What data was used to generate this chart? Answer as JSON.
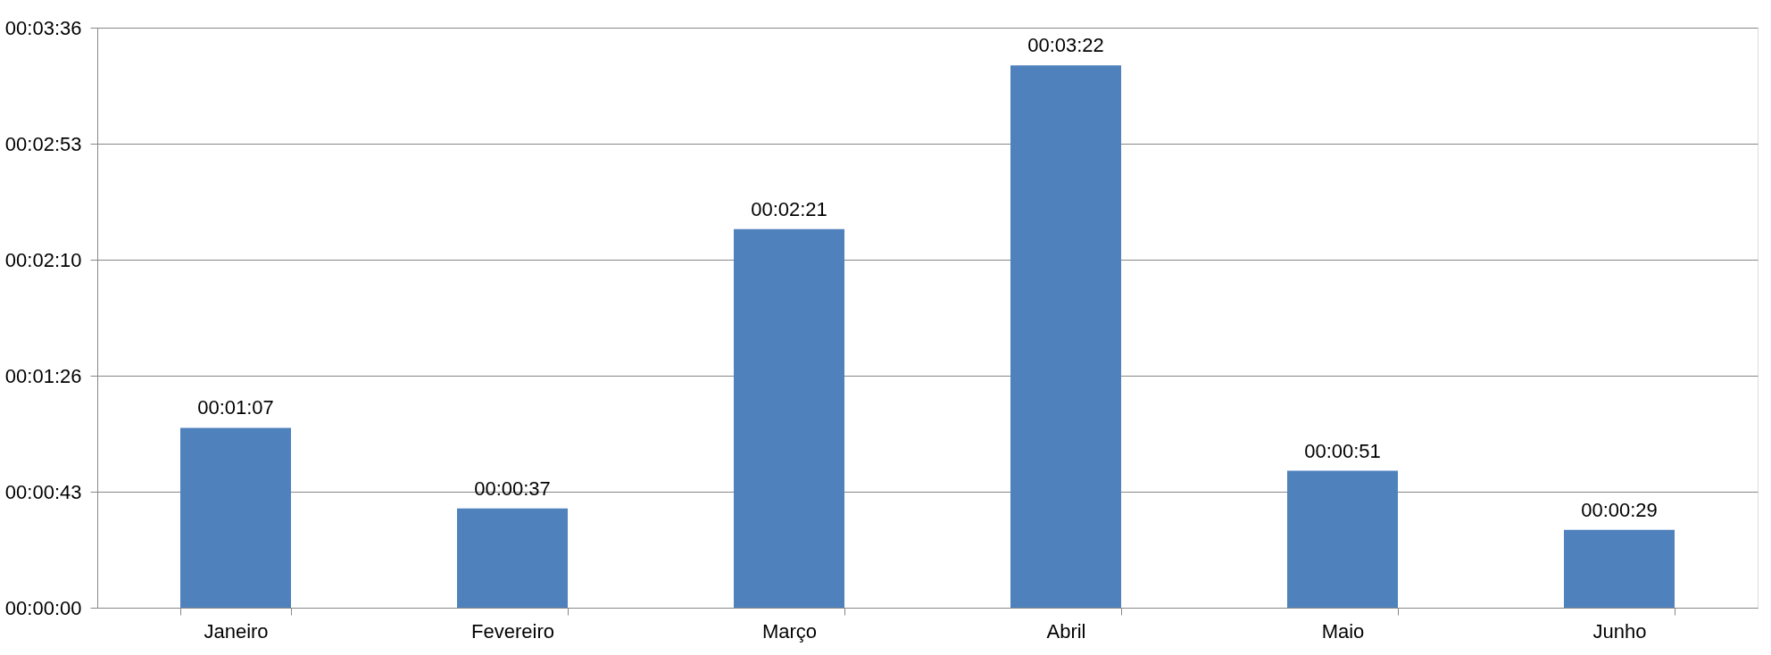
{
  "chart_data": {
    "type": "bar",
    "categories": [
      "Janeiro",
      "Fevereiro",
      "Março",
      "Abril",
      "Maio",
      "Junho"
    ],
    "values": [
      67,
      37,
      141,
      202,
      51,
      29
    ],
    "value_labels": [
      "00:01:07",
      "00:00:37",
      "00:02:21",
      "00:03:22",
      "00:00:51",
      "00:00:29"
    ],
    "color": "#4f81bd",
    "ylim": [
      0,
      216
    ],
    "yticks": [
      {
        "value": 0,
        "label": "00:00:00"
      },
      {
        "value": 43.2,
        "label": "00:00:43"
      },
      {
        "value": 86.4,
        "label": "00:01:26"
      },
      {
        "value": 129.6,
        "label": "00:02:10"
      },
      {
        "value": 172.8,
        "label": "00:02:53"
      },
      {
        "value": 216,
        "label": "00:03:36"
      }
    ],
    "grid": "y"
  }
}
